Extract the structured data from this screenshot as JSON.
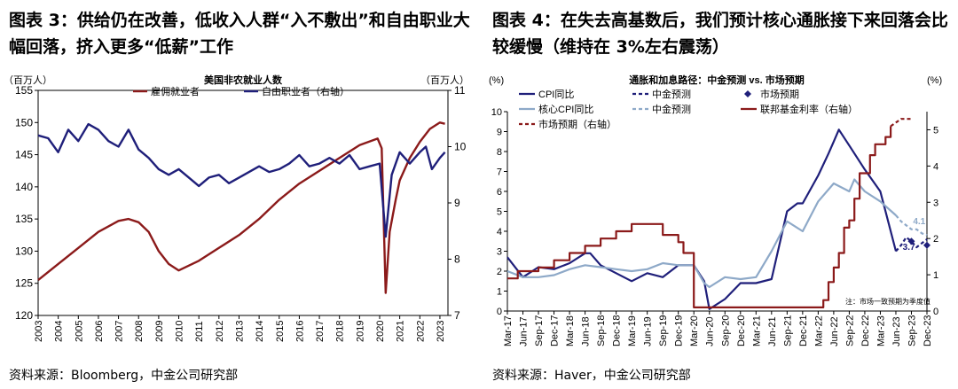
{
  "left": {
    "title": "图表 3：供给仍在改善，低收入人群“入不敷出”和自由职业大幅回落，挤入更多“低薪”工作",
    "source": "资料来源：Bloomberg，中金公司研究部"
  },
  "right": {
    "title": "图表 4：在失去高基数后，我们预计核心通胀接下来回落会比较缓慢（维持在 3%左右震荡）",
    "source": "资料来源：Haver，中金公司研究部"
  },
  "chart_data": [
    {
      "type": "line",
      "title": "美国非农就业人数",
      "ylabel_left": "（百万人）",
      "ylabel_right": "（百万人）",
      "ylim_left": [
        120,
        155
      ],
      "yticks_left": [
        120,
        125,
        130,
        135,
        140,
        145,
        150,
        155
      ],
      "ylim_right": [
        7,
        11
      ],
      "yticks_right": [
        7,
        8,
        9,
        10,
        11
      ],
      "xlim": [
        2003,
        2023.4
      ],
      "xticks": [
        "2003",
        "2004",
        "2005",
        "2006",
        "2007",
        "2008",
        "2009",
        "2010",
        "2011",
        "2012",
        "2013",
        "2014",
        "2015",
        "2016",
        "2017",
        "2018",
        "2019",
        "2020",
        "2021",
        "2022",
        "2023"
      ],
      "legend_position": "top",
      "series": [
        {
          "name": "雇佣就业者",
          "axis": "left",
          "color": "#8B1A1A",
          "x": [
            2003,
            2004,
            2005,
            2006,
            2007,
            2007.5,
            2008,
            2008.5,
            2009,
            2009.5,
            2010,
            2011,
            2012,
            2013,
            2014,
            2015,
            2016,
            2017,
            2018,
            2019,
            2019.9,
            2020.1,
            2020.3,
            2020.5,
            2020.8,
            2021,
            2021.5,
            2022,
            2022.5,
            2023,
            2023.25
          ],
          "values": [
            125.5,
            128,
            130.5,
            133,
            134.7,
            135,
            134.5,
            133,
            130,
            128,
            127,
            128.5,
            130.5,
            132.5,
            135,
            138,
            140.5,
            142.5,
            144.5,
            146.5,
            147.5,
            146,
            123.5,
            133,
            138,
            141,
            144.5,
            147,
            149,
            150,
            149.8
          ]
        },
        {
          "name": "自由职业者（右轴）",
          "axis": "right",
          "color": "#1F1F7A",
          "x": [
            2003,
            2003.5,
            2004,
            2004.5,
            2005,
            2005.5,
            2006,
            2006.5,
            2007,
            2007.5,
            2008,
            2008.5,
            2009,
            2009.5,
            2010,
            2010.5,
            2011,
            2011.5,
            2012,
            2012.5,
            2013,
            2013.5,
            2014,
            2014.5,
            2015,
            2015.5,
            2016,
            2016.5,
            2017,
            2017.5,
            2018,
            2018.5,
            2019,
            2019.5,
            2020,
            2020.3,
            2020.6,
            2021,
            2021.5,
            2022,
            2022.3,
            2022.6,
            2023,
            2023.25
          ],
          "values": [
            10.2,
            10.15,
            9.9,
            10.3,
            10.1,
            10.4,
            10.3,
            10.1,
            10.0,
            10.3,
            9.95,
            9.8,
            9.6,
            9.5,
            9.6,
            9.45,
            9.3,
            9.45,
            9.5,
            9.35,
            9.45,
            9.55,
            9.65,
            9.55,
            9.6,
            9.7,
            9.85,
            9.65,
            9.7,
            9.8,
            9.7,
            9.85,
            9.6,
            9.65,
            9.7,
            8.4,
            9.5,
            9.9,
            9.7,
            9.9,
            10.0,
            9.6,
            9.8,
            9.9
          ]
        }
      ]
    },
    {
      "type": "line",
      "title": "通胀和加息路径：中金预测 vs. 市场预期",
      "ylabel_left": "(%)",
      "ylabel_right": "(%)",
      "ylim_left": [
        0,
        10
      ],
      "yticks_left": [
        0,
        1,
        2,
        3,
        4,
        5,
        6,
        7,
        8,
        9,
        10
      ],
      "ylim_right": [
        0,
        5.5
      ],
      "yticks_right": [
        0,
        1,
        2,
        3,
        4,
        5
      ],
      "xlim": [
        0,
        81
      ],
      "xticks": [
        "Mar-17",
        "Jun-17",
        "Sep-17",
        "Dec-17",
        "Mar-18",
        "Jun-18",
        "Sep-18",
        "Dec-18",
        "Mar-19",
        "Jun-19",
        "Sep-19",
        "Dec-19",
        "Mar-20",
        "Jun-20",
        "Sep-20",
        "Dec-20",
        "Mar-21",
        "Jun-21",
        "Sep-21",
        "Dec-21",
        "Mar-22",
        "Jun-22",
        "Sep-22",
        "Dec-22",
        "Mar-23",
        "Jun-23",
        "Sep-23",
        "Dec-23"
      ],
      "legend_position": "top",
      "note": "注：市场一致预期为季度值",
      "annotations": [
        {
          "text": "4.1",
          "x": 79,
          "y": 4.1,
          "color": "#8EA9C8"
        },
        {
          "text": "3.7",
          "x": 77,
          "y": 3.7,
          "color": "#1F1F7A"
        }
      ],
      "series": [
        {
          "name": "CPI同比",
          "axis": "left",
          "color": "#1F1F7A",
          "x": [
            0,
            3,
            6,
            9,
            12,
            15,
            16,
            18,
            21,
            24,
            27,
            30,
            33,
            36,
            38,
            39,
            42,
            45,
            48,
            51,
            54,
            56,
            57,
            60,
            62,
            63,
            64,
            66,
            69,
            72,
            73,
            75
          ],
          "values": [
            2.7,
            1.7,
            2.2,
            2.1,
            2.4,
            2.9,
            2.9,
            2.3,
            1.9,
            1.5,
            1.9,
            1.7,
            2.3,
            2.3,
            1.5,
            0.1,
            0.6,
            1.4,
            1.4,
            1.6,
            5.0,
            5.4,
            5.4,
            6.8,
            7.9,
            8.5,
            9.1,
            8.3,
            7.1,
            6.0,
            5.0,
            3.0
          ]
        },
        {
          "name": "核心CPI同比",
          "axis": "left",
          "color": "#8EA9C8",
          "x": [
            0,
            3,
            6,
            9,
            12,
            15,
            18,
            21,
            24,
            27,
            30,
            33,
            36,
            38,
            39,
            42,
            45,
            48,
            51,
            54,
            57,
            60,
            63,
            66,
            67,
            69,
            72,
            75
          ],
          "values": [
            2.0,
            1.7,
            1.7,
            1.8,
            2.1,
            2.3,
            2.2,
            2.1,
            2.0,
            2.1,
            2.4,
            2.3,
            2.3,
            1.4,
            1.2,
            1.7,
            1.6,
            1.7,
            3.0,
            4.5,
            4.0,
            5.5,
            6.4,
            6.0,
            6.6,
            6.0,
            5.5,
            4.8
          ]
        },
        {
          "name": "中金预测",
          "axis": "left",
          "color": "#1F1F7A",
          "dashed": true,
          "x": [
            75,
            76,
            77,
            78,
            79,
            80,
            81
          ],
          "values": [
            3.0,
            3.3,
            3.7,
            3.5,
            3.2,
            3.4,
            3.6
          ]
        },
        {
          "name": "中金预测",
          "axis": "left",
          "color": "#8EA9C8",
          "dashed": true,
          "x": [
            75,
            76,
            77,
            78,
            79,
            80,
            81
          ],
          "values": [
            4.8,
            4.5,
            4.3,
            4.1,
            4.1,
            3.9,
            3.8
          ]
        },
        {
          "name": "市场预期",
          "axis": "left",
          "color": "#1F1F7A",
          "marker": "diamond",
          "x": [
            78,
            81
          ],
          "values": [
            3.5,
            3.3
          ]
        },
        {
          "name": "联邦基金利率（右轴）",
          "axis": "right",
          "color": "#8B1A1A",
          "step": true,
          "x": [
            0,
            1,
            2,
            4,
            6,
            9,
            12,
            14,
            15,
            18,
            21,
            24,
            27,
            28,
            29,
            30,
            32,
            33,
            34,
            35,
            36,
            60,
            61,
            62,
            63,
            64,
            65,
            66,
            67,
            68,
            69,
            70,
            71,
            72,
            73,
            74
          ],
          "values": [
            0.9,
            0.9,
            1.1,
            1.1,
            1.2,
            1.4,
            1.6,
            1.6,
            1.8,
            2.0,
            2.2,
            2.4,
            2.4,
            2.4,
            2.4,
            2.1,
            2.1,
            1.9,
            1.6,
            1.6,
            0.1,
            0.1,
            0.3,
            0.8,
            1.2,
            1.6,
            2.3,
            2.5,
            3.1,
            3.8,
            3.8,
            4.3,
            4.6,
            4.6,
            4.8,
            5.1
          ]
        },
        {
          "name": "市场预期（右轴）",
          "axis": "right",
          "color": "#8B1A1A",
          "dashed": true,
          "x": [
            74,
            75,
            76,
            77,
            78
          ],
          "values": [
            5.1,
            5.2,
            5.3,
            5.3,
            5.3
          ]
        }
      ]
    }
  ]
}
